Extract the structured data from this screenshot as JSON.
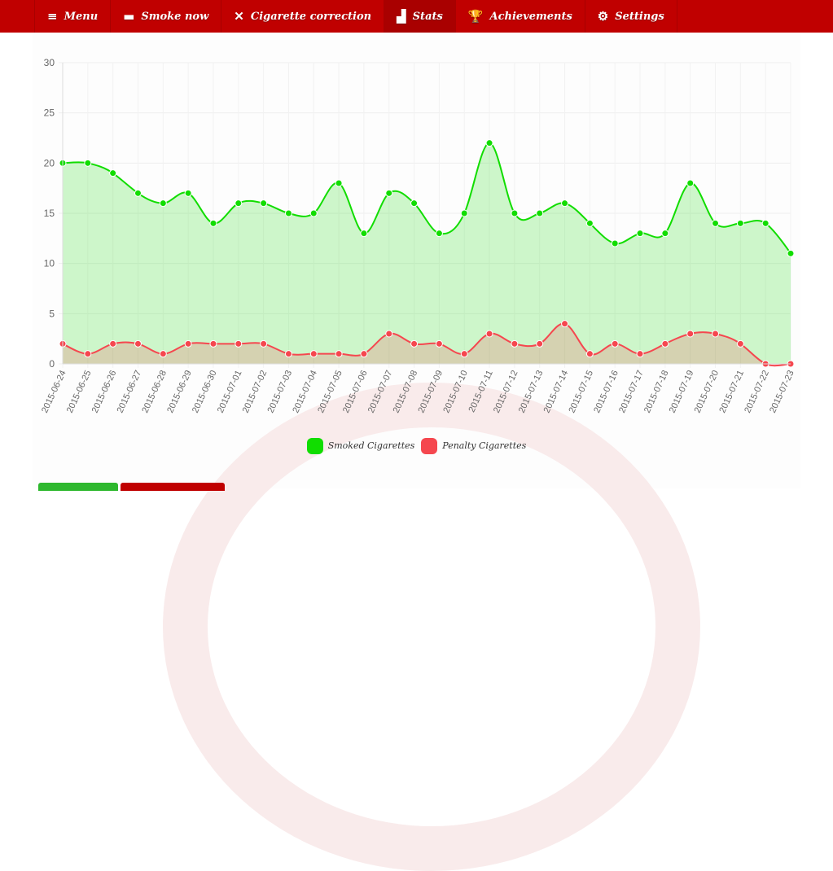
{
  "nav": {
    "items": [
      {
        "label": "Menu",
        "icon": "menu-icon",
        "glyph": "≡"
      },
      {
        "label": "Smoke now",
        "icon": "cigarette-icon",
        "glyph": "▬"
      },
      {
        "label": "Cigarette correction",
        "icon": "tools-icon",
        "glyph": "✕"
      },
      {
        "label": "Stats",
        "icon": "bar-chart-icon",
        "glyph": "▟",
        "active": true
      },
      {
        "label": "Achievements",
        "icon": "trophy-icon",
        "glyph": "🏆"
      },
      {
        "label": "Settings",
        "icon": "gear-icon",
        "glyph": "⚙"
      }
    ]
  },
  "colors": {
    "nav": "#c00000",
    "smoked": "#11dd00",
    "penalty": "#f5474f",
    "button_green": "#2eb82e",
    "button_red": "#c00000"
  },
  "chart_data": {
    "type": "area",
    "ylim": [
      0,
      30
    ],
    "yticks": [
      0,
      5,
      10,
      15,
      20,
      25,
      30
    ],
    "grid": true,
    "legend_position": "bottom",
    "categories": [
      "2015-06-24",
      "2015-06-25",
      "2015-06-26",
      "2015-06-27",
      "2015-06-28",
      "2015-06-29",
      "2015-06-30",
      "2015-07-01",
      "2015-07-02",
      "2015-07-03",
      "2015-07-04",
      "2015-07-05",
      "2015-07-06",
      "2015-07-07",
      "2015-07-08",
      "2015-07-09",
      "2015-07-10",
      "2015-07-11",
      "2015-07-12",
      "2015-07-13",
      "2015-07-14",
      "2015-07-15",
      "2015-07-16",
      "2015-07-17",
      "2015-07-18",
      "2015-07-19",
      "2015-07-20",
      "2015-07-21",
      "2015-07-22",
      "2015-07-23"
    ],
    "series": [
      {
        "name": "Smoked Cigarettes",
        "color": "#11dd00",
        "values": [
          20,
          20,
          19,
          17,
          16,
          17,
          14,
          16,
          16,
          15,
          15,
          18,
          13,
          17,
          16,
          13,
          15,
          22,
          15,
          15,
          16,
          14,
          12,
          13,
          13,
          18,
          14,
          14,
          14,
          11
        ]
      },
      {
        "name": "Penalty Cigarettes",
        "color": "#f5474f",
        "values": [
          2,
          1,
          2,
          2,
          1,
          2,
          2,
          2,
          2,
          1,
          1,
          1,
          1,
          3,
          2,
          2,
          1,
          3,
          2,
          2,
          4,
          1,
          2,
          1,
          2,
          3,
          3,
          2,
          0,
          0
        ]
      }
    ]
  }
}
